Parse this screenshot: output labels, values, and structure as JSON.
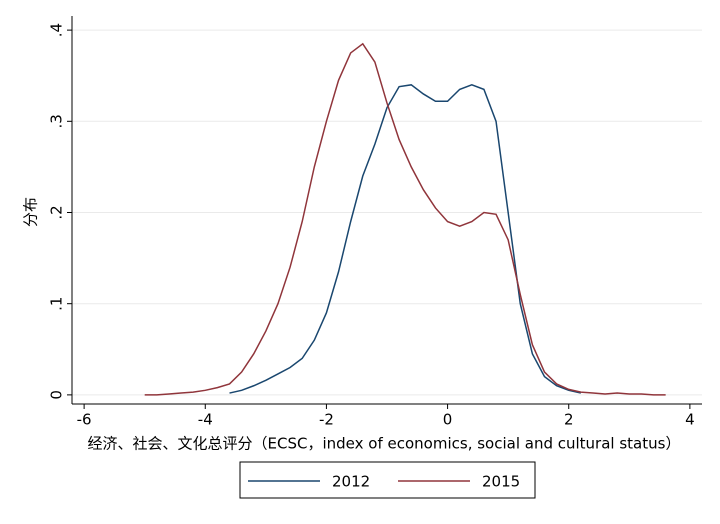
{
  "chart_data": {
    "type": "line",
    "x_label": "经济、社会、文化总评分（ECSC，index of economics, social and cultural status）",
    "y_label": "分布",
    "x": [
      -5,
      -4.8,
      -4.6,
      -4.4,
      -4.2,
      -4,
      -3.8,
      -3.6,
      -3.4,
      -3.2,
      -3,
      -2.8,
      -2.6,
      -2.4,
      -2.2,
      -2,
      -1.8,
      -1.6,
      -1.4,
      -1.2,
      -1,
      -0.8,
      -0.6,
      -0.4,
      -0.2,
      0,
      0.2,
      0.4,
      0.6,
      0.8,
      1,
      1.2,
      1.4,
      1.6,
      1.8,
      2,
      2.2,
      2.4,
      2.6,
      2.8,
      3,
      3.2,
      3.4,
      3.6
    ],
    "series": [
      {
        "name": "2012",
        "color": "#1a476f",
        "values": [
          null,
          null,
          null,
          null,
          null,
          null,
          null,
          0.002,
          0.005,
          0.01,
          0.016,
          0.023,
          0.03,
          0.04,
          0.06,
          0.09,
          0.135,
          0.19,
          0.24,
          0.275,
          0.315,
          0.338,
          0.34,
          0.33,
          0.322,
          0.322,
          0.335,
          0.34,
          0.335,
          0.3,
          0.2,
          0.1,
          0.045,
          0.02,
          0.01,
          0.005,
          0.002,
          null,
          null,
          null,
          null,
          null,
          null,
          null
        ]
      },
      {
        "name": "2015",
        "color": "#90353b",
        "values": [
          0,
          0,
          0.001,
          0.002,
          0.003,
          0.005,
          0.008,
          0.012,
          0.025,
          0.045,
          0.07,
          0.1,
          0.14,
          0.19,
          0.25,
          0.3,
          0.345,
          0.375,
          0.385,
          0.365,
          0.32,
          0.28,
          0.25,
          0.225,
          0.205,
          0.19,
          0.185,
          0.19,
          0.2,
          0.198,
          0.17,
          0.11,
          0.055,
          0.025,
          0.012,
          0.006,
          0.003,
          0.002,
          0.001,
          0.002,
          0.001,
          0.001,
          0,
          0
        ]
      }
    ],
    "xlim": [
      -6.2,
      4.2
    ],
    "ylim": [
      -0.01,
      0.41
    ],
    "xticks": [
      -6,
      -4,
      -2,
      0,
      2,
      4
    ],
    "yticks": [
      0,
      {
        "value": 0.1,
        "label": ".1"
      },
      {
        "value": 0.2,
        "label": ".2"
      },
      {
        "value": 0.3,
        "label": ".3"
      },
      {
        "value": 0.4,
        "label": ".4"
      }
    ],
    "grid": true,
    "legend": "bottom"
  }
}
